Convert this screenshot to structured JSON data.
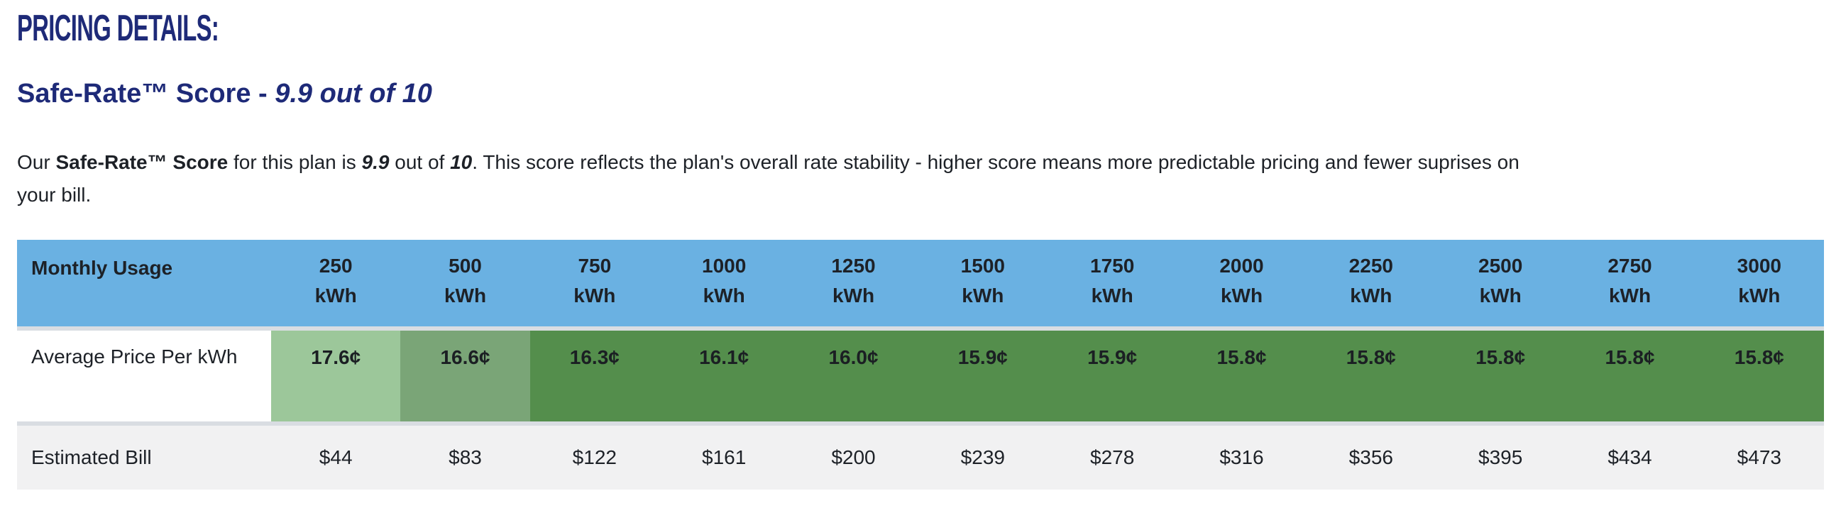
{
  "page_title": "PRICING DETAILS:",
  "heading": {
    "prefix": "Safe-Rate™ Score - ",
    "score_phrase": "9.9 out of 10"
  },
  "paragraph": {
    "p1": "Our ",
    "b1": "Safe-Rate™ Score",
    "p2": " for this plan is ",
    "score": "9.9",
    "p3": " out of ",
    "total": "10",
    "p4": ". This score reflects the plan's overall rate stability - higher score means more predictable pricing and fewer suprises on",
    "p5": "your bill."
  },
  "table": {
    "usage_label": "Monthly Usage",
    "usage_unit": "kWh",
    "usage_columns": [
      "250",
      "500",
      "750",
      "1000",
      "1250",
      "1500",
      "1750",
      "2000",
      "2250",
      "2500",
      "2750",
      "3000"
    ],
    "price_row": {
      "label": "Average Price Per kWh",
      "values": [
        "17.6¢",
        "16.6¢",
        "16.3¢",
        "16.1¢",
        "16.0¢",
        "15.9¢",
        "15.9¢",
        "15.8¢",
        "15.8¢",
        "15.8¢",
        "15.8¢",
        "15.8¢"
      ],
      "cell_colors": [
        "#9cc79a",
        "#7aa577",
        "#548e4c",
        "#548e4c",
        "#548e4c",
        "#548e4c",
        "#548e4c",
        "#548e4c",
        "#548e4c",
        "#548e4c",
        "#548e4c",
        "#548e4c"
      ]
    },
    "bill_row": {
      "label": "Estimated Bill",
      "values": [
        "$44",
        "$83",
        "$122",
        "$161",
        "$200",
        "$239",
        "$278",
        "$316",
        "$356",
        "$395",
        "$434",
        "$473"
      ]
    }
  },
  "colors": {
    "heading_navy": "#1e2a78",
    "header_blue": "#6ab1e2",
    "green_light": "#9cc79a",
    "green_medium": "#7aa577",
    "green_dark": "#548e4c",
    "bill_row_bg": "#f1f1f2",
    "divider": "#d9dde2",
    "body_text": "#1d2127"
  }
}
